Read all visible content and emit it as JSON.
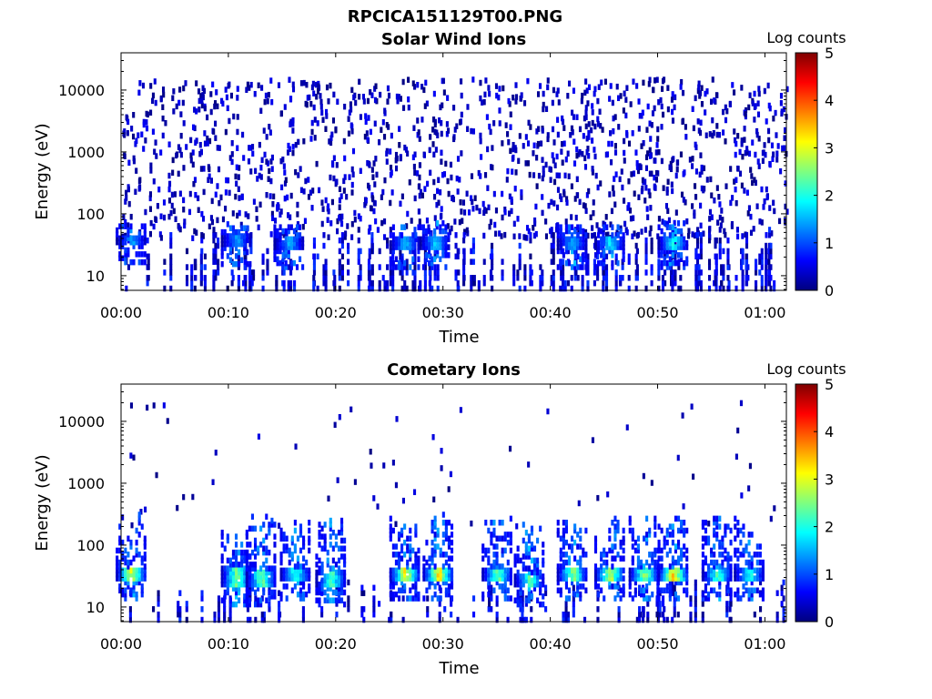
{
  "figure": {
    "title": "RPCICA151129T00.PNG"
  },
  "colormap": {
    "name": "jet",
    "stops": [
      "#00007f",
      "#0000ff",
      "#007fff",
      "#00ffff",
      "#7fff7f",
      "#ffff00",
      "#ff7f00",
      "#ff0000",
      "#7f0000"
    ]
  },
  "chart_data": [
    {
      "type": "heatmap",
      "title": "Solar Wind Ions",
      "xlabel": "Time",
      "ylabel": "Energy (eV)",
      "x_ticks": [
        "00:00",
        "00:10",
        "00:20",
        "00:30",
        "00:40",
        "00:50",
        "01:00"
      ],
      "x_range_minutes": [
        0,
        62
      ],
      "y_scale": "log",
      "y_ticks": [
        "10",
        "100",
        "1000",
        "10000"
      ],
      "y_range": [
        5.8,
        40000
      ],
      "colorbar": {
        "label": "Log counts",
        "ticks": [
          "0",
          "1",
          "2",
          "3",
          "4",
          "5"
        ],
        "range": [
          0,
          5
        ]
      },
      "background_noise": {
        "energy_range": [
          40,
          15000
        ],
        "log_counts_range": [
          0,
          0.6
        ]
      },
      "clusters": [
        {
          "time_min": 0.9,
          "energy_range": [
            30,
            45
          ],
          "peak_log_counts": 1.7
        },
        {
          "time_min": 10.7,
          "energy_range": [
            28,
            45
          ],
          "peak_log_counts": 1.6
        },
        {
          "time_min": 15.6,
          "energy_range": [
            25,
            40
          ],
          "peak_log_counts": 1.7
        },
        {
          "time_min": 26.4,
          "energy_range": [
            25,
            40
          ],
          "peak_log_counts": 1.8
        },
        {
          "time_min": 29.2,
          "energy_range": [
            25,
            45
          ],
          "peak_log_counts": 1.9
        },
        {
          "time_min": 42.0,
          "energy_range": [
            25,
            40
          ],
          "peak_log_counts": 1.7
        },
        {
          "time_min": 45.5,
          "energy_range": [
            25,
            40
          ],
          "peak_log_counts": 2.0
        },
        {
          "time_min": 51.4,
          "energy_range": [
            25,
            45
          ],
          "peak_log_counts": 2.2
        }
      ]
    },
    {
      "type": "heatmap",
      "title": "Cometary Ions",
      "xlabel": "Time",
      "ylabel": "Energy (eV)",
      "x_ticks": [
        "00:00",
        "00:10",
        "00:20",
        "00:30",
        "00:40",
        "00:50",
        "01:00"
      ],
      "x_range_minutes": [
        0,
        62
      ],
      "y_scale": "log",
      "y_ticks": [
        "10",
        "100",
        "1000",
        "10000"
      ],
      "y_range": [
        5.8,
        40000
      ],
      "colorbar": {
        "label": "Log counts",
        "ticks": [
          "0",
          "1",
          "2",
          "3",
          "4",
          "5"
        ],
        "range": [
          0,
          5
        ]
      },
      "background_noise": {
        "energy_range": [
          200,
          20000
        ],
        "log_counts_range": [
          0,
          0.5
        ]
      },
      "clusters": [
        {
          "time_min": 0.9,
          "energy_range": [
            25,
            45
          ],
          "peak_log_counts": 3.5
        },
        {
          "time_min": 10.7,
          "energy_range": [
            20,
            45
          ],
          "peak_log_counts": 2.9
        },
        {
          "time_min": 13.0,
          "energy_range": [
            20,
            40
          ],
          "peak_log_counts": 2.8
        },
        {
          "time_min": 16.2,
          "energy_range": [
            25,
            45
          ],
          "peak_log_counts": 2.5
        },
        {
          "time_min": 19.5,
          "energy_range": [
            20,
            40
          ],
          "peak_log_counts": 2.6
        },
        {
          "time_min": 26.4,
          "energy_range": [
            25,
            40
          ],
          "peak_log_counts": 3.6
        },
        {
          "time_min": 29.5,
          "energy_range": [
            25,
            40
          ],
          "peak_log_counts": 3.8
        },
        {
          "time_min": 35.0,
          "energy_range": [
            25,
            40
          ],
          "peak_log_counts": 2.8
        },
        {
          "time_min": 38.0,
          "energy_range": [
            20,
            35
          ],
          "peak_log_counts": 2.6
        },
        {
          "time_min": 42.0,
          "energy_range": [
            25,
            40
          ],
          "peak_log_counts": 2.9
        },
        {
          "time_min": 45.5,
          "energy_range": [
            25,
            40
          ],
          "peak_log_counts": 3.3
        },
        {
          "time_min": 48.7,
          "energy_range": [
            25,
            40
          ],
          "peak_log_counts": 2.9
        },
        {
          "time_min": 51.4,
          "energy_range": [
            25,
            45
          ],
          "peak_log_counts": 3.9
        },
        {
          "time_min": 55.5,
          "energy_range": [
            25,
            40
          ],
          "peak_log_counts": 2.6
        },
        {
          "time_min": 58.5,
          "energy_range": [
            25,
            40
          ],
          "peak_log_counts": 2.3
        }
      ]
    }
  ]
}
